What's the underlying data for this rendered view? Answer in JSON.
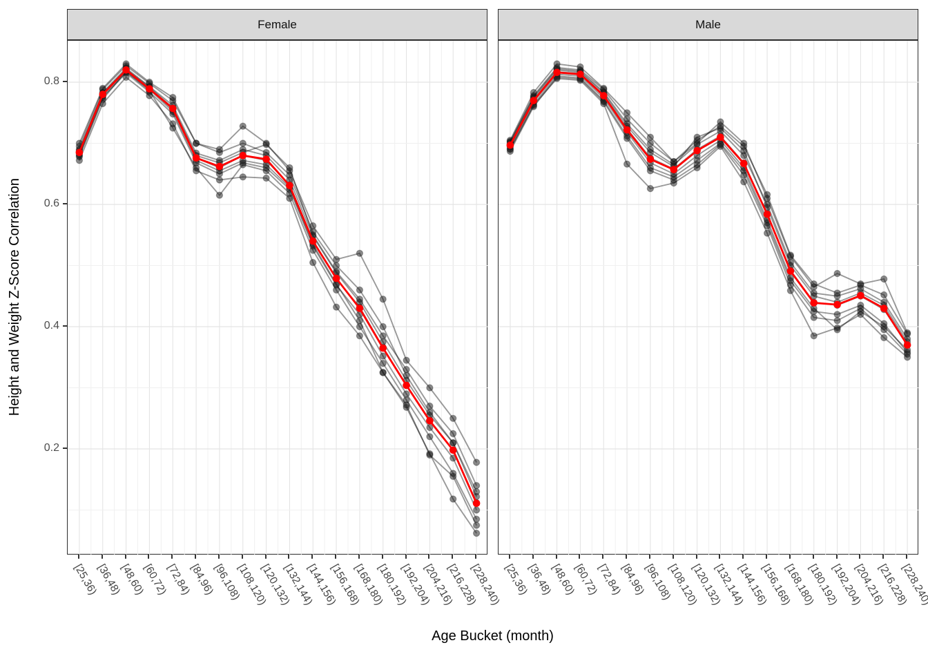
{
  "chart_data": {
    "type": "line",
    "title": "",
    "xlabel": "Age Bucket (month)",
    "ylabel": "Height and Weight Z-Score Correlation",
    "categories": [
      "[25,36)",
      "[36,48)",
      "[48,60)",
      "[60,72)",
      "[72,84)",
      "[84,96)",
      "[96,108)",
      "[108,120)",
      "[120,132)",
      "[132,144)",
      "[144,156)",
      "[156,168)",
      "[168,180)",
      "[180,192)",
      "[192,204)",
      "[204,216)",
      "[216,228)",
      "[228,240)"
    ],
    "y_ticks": [
      "0.2",
      "0.4",
      "0.6",
      "0.8"
    ],
    "ylim": [
      0.026,
      0.868
    ],
    "grid": {
      "h_major": [
        0.2,
        0.4,
        0.6,
        0.8
      ],
      "h_minor": [
        0.1,
        0.3,
        0.5,
        0.7
      ],
      "v_lines": "every category and midpoints"
    },
    "legend": "none",
    "colors": {
      "mean_line": "#FF0000",
      "individual_line": "rgba(0,0,0,0.40)",
      "point_fill": "rgba(30,30,30,0.52)",
      "strip_bg": "#D9D9D9",
      "panel_border": "#2B2B2B",
      "grid_major": "#E4E4E4",
      "grid_minor": "#F0F0F0",
      "tick_text": "#4D4D4D"
    },
    "facets": [
      {
        "label": "Female",
        "mean_series": [
          0.685,
          0.78,
          0.82,
          0.789,
          0.757,
          0.676,
          0.662,
          0.68,
          0.674,
          0.631,
          0.54,
          0.479,
          0.43,
          0.365,
          0.304,
          0.246,
          0.198,
          0.111
        ],
        "individual_series": [
          [
            0.695,
            0.788,
            0.827,
            0.798,
            0.77,
            0.7,
            0.69,
            0.728,
            0.7,
            0.655,
            0.565,
            0.51,
            0.52,
            0.445,
            0.345,
            0.3,
            0.25,
            0.178
          ],
          [
            0.678,
            0.772,
            0.818,
            0.786,
            0.725,
            0.66,
            0.615,
            0.665,
            0.655,
            0.618,
            0.525,
            0.46,
            0.4,
            0.34,
            0.28,
            0.22,
            0.16,
            0.085
          ],
          [
            0.672,
            0.765,
            0.808,
            0.778,
            0.732,
            0.655,
            0.64,
            0.645,
            0.643,
            0.61,
            0.505,
            0.432,
            0.385,
            0.325,
            0.268,
            0.192,
            0.118,
            0.062
          ],
          [
            0.7,
            0.79,
            0.83,
            0.8,
            0.775,
            0.7,
            0.685,
            0.7,
            0.685,
            0.648,
            0.555,
            0.5,
            0.46,
            0.4,
            0.32,
            0.26,
            0.21,
            0.13
          ],
          [
            0.686,
            0.78,
            0.82,
            0.79,
            0.755,
            0.676,
            0.66,
            0.68,
            0.672,
            0.632,
            0.54,
            0.478,
            0.432,
            0.366,
            0.304,
            0.247,
            0.198,
            0.112
          ],
          [
            0.68,
            0.775,
            0.815,
            0.784,
            0.748,
            0.668,
            0.65,
            0.668,
            0.66,
            0.625,
            0.532,
            0.468,
            0.42,
            0.352,
            0.29,
            0.235,
            0.185,
            0.1
          ],
          [
            0.69,
            0.783,
            0.823,
            0.793,
            0.762,
            0.684,
            0.672,
            0.69,
            0.68,
            0.64,
            0.548,
            0.488,
            0.44,
            0.375,
            0.312,
            0.255,
            0.21,
            0.122
          ],
          [
            0.682,
            0.777,
            0.817,
            0.788,
            0.752,
            0.672,
            0.655,
            0.672,
            0.665,
            0.628,
            0.535,
            0.47,
            0.41,
            0.325,
            0.272,
            0.19,
            0.155,
            0.075
          ],
          [
            0.688,
            0.782,
            0.821,
            0.792,
            0.758,
            0.68,
            0.668,
            0.685,
            0.698,
            0.66,
            0.55,
            0.49,
            0.445,
            0.385,
            0.33,
            0.27,
            0.225,
            0.14
          ]
        ]
      },
      {
        "label": "Male",
        "mean_series": [
          0.697,
          0.77,
          0.816,
          0.813,
          0.778,
          0.722,
          0.674,
          0.657,
          0.688,
          0.71,
          0.667,
          0.584,
          0.491,
          0.439,
          0.436,
          0.451,
          0.43,
          0.37
        ],
        "individual_series": [
          [
            0.703,
            0.778,
            0.824,
            0.82,
            0.788,
            0.74,
            0.7,
            0.67,
            0.7,
            0.735,
            0.7,
            0.61,
            0.515,
            0.465,
            0.487,
            0.47,
            0.478,
            0.39
          ],
          [
            0.69,
            0.762,
            0.806,
            0.803,
            0.765,
            0.666,
            0.626,
            0.635,
            0.66,
            0.695,
            0.637,
            0.553,
            0.459,
            0.385,
            0.398,
            0.42,
            0.382,
            0.35
          ],
          [
            0.705,
            0.783,
            0.83,
            0.825,
            0.79,
            0.75,
            0.71,
            0.67,
            0.705,
            0.728,
            0.695,
            0.616,
            0.517,
            0.47,
            0.455,
            0.468,
            0.452,
            0.388
          ],
          [
            0.698,
            0.771,
            0.817,
            0.814,
            0.779,
            0.724,
            0.676,
            0.658,
            0.69,
            0.712,
            0.668,
            0.585,
            0.492,
            0.44,
            0.435,
            0.45,
            0.428,
            0.37
          ],
          [
            0.691,
            0.764,
            0.81,
            0.807,
            0.77,
            0.712,
            0.66,
            0.645,
            0.672,
            0.7,
            0.655,
            0.57,
            0.475,
            0.425,
            0.42,
            0.435,
            0.405,
            0.358
          ],
          [
            0.702,
            0.776,
            0.822,
            0.818,
            0.784,
            0.732,
            0.69,
            0.665,
            0.698,
            0.72,
            0.68,
            0.6,
            0.505,
            0.455,
            0.45,
            0.462,
            0.44,
            0.38
          ],
          [
            0.694,
            0.768,
            0.813,
            0.81,
            0.774,
            0.718,
            0.668,
            0.65,
            0.68,
            0.705,
            0.66,
            0.575,
            0.48,
            0.43,
            0.395,
            0.425,
            0.4,
            0.362
          ],
          [
            0.687,
            0.76,
            0.808,
            0.805,
            0.768,
            0.708,
            0.655,
            0.64,
            0.665,
            0.698,
            0.648,
            0.565,
            0.468,
            0.415,
            0.41,
            0.43,
            0.395,
            0.355
          ],
          [
            0.7,
            0.774,
            0.82,
            0.816,
            0.782,
            0.728,
            0.685,
            0.662,
            0.71,
            0.725,
            0.688,
            0.595,
            0.5,
            0.45,
            0.44,
            0.455,
            0.435,
            0.375
          ]
        ]
      }
    ]
  }
}
